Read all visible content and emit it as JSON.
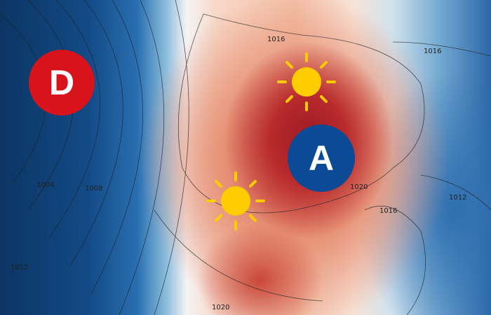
{
  "map": {
    "low_pressure": {
      "letter": "D",
      "color": "#d8131b"
    },
    "high_pressure": {
      "letter": "A",
      "color": "#0b4a95"
    },
    "sun_color": "#ffcc00",
    "icons": [
      "sun-icon",
      "sun-icon"
    ],
    "isobar_labels": [
      "1016",
      "1016",
      "1004",
      "1008",
      "1012",
      "1020",
      "1020",
      "1016",
      "1012"
    ]
  }
}
